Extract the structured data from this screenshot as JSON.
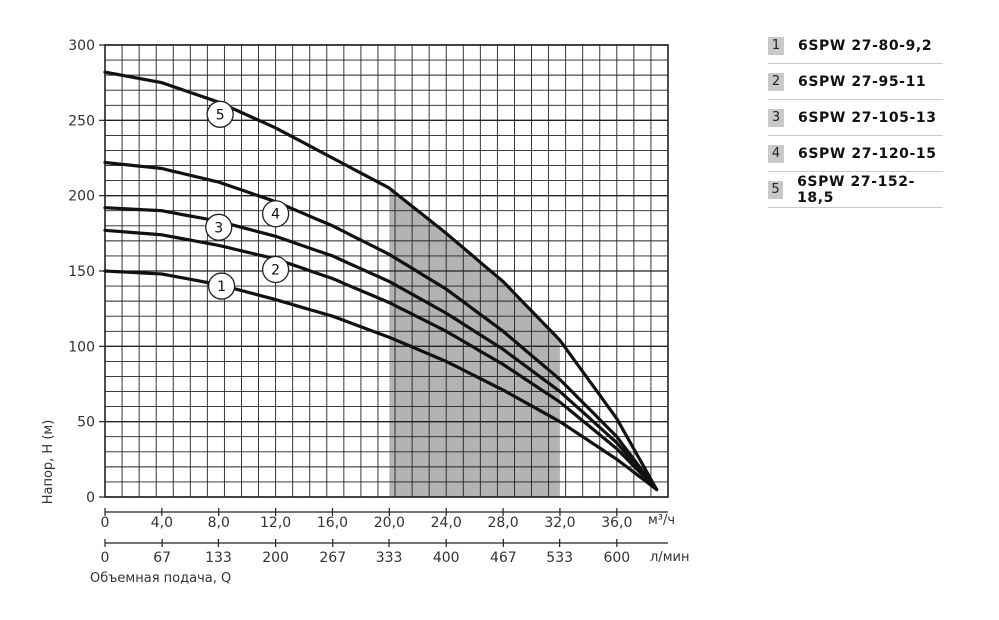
{
  "chart_data": {
    "type": "line",
    "ylabel": "Напор, H (м)",
    "xlabel": "Объемная подача, Q",
    "ylim": [
      0,
      300
    ],
    "xlim": [
      0,
      40
    ],
    "y_ticks": [
      "0",
      "50",
      "100",
      "150",
      "200",
      "250",
      "300"
    ],
    "x_ticks": [
      "0",
      "4,0",
      "8,0",
      "12,0",
      "16,0",
      "20,0",
      "24,0",
      "28,0",
      "32,0",
      "36,0"
    ],
    "x_unit": "м³/ч",
    "x2_ticks": [
      "0",
      "67",
      "133",
      "200",
      "267",
      "333",
      "400",
      "467",
      "533",
      "600"
    ],
    "x2_unit": "л/мин",
    "grid": true,
    "working_range": [
      20,
      32
    ],
    "series": [
      {
        "name": "6SPW 27-80-9,2",
        "marker": "1",
        "x": [
          0,
          4,
          8,
          12,
          16,
          20,
          24,
          28,
          32,
          36,
          38.8
        ],
        "y": [
          150,
          148,
          141,
          131,
          120,
          106,
          90,
          71,
          50,
          25,
          5
        ]
      },
      {
        "name": "6SPW 27-95-11",
        "marker": "2",
        "x": [
          0,
          4,
          8,
          12,
          16,
          20,
          24,
          28,
          32,
          36,
          38.8
        ],
        "y": [
          177,
          174,
          167,
          158,
          145,
          129,
          110,
          88,
          63,
          32,
          5
        ]
      },
      {
        "name": "6SPW 27-105-13",
        "marker": "3",
        "x": [
          0,
          4,
          8,
          12,
          16,
          20,
          24,
          28,
          32,
          36,
          38.8
        ],
        "y": [
          192,
          190,
          183,
          173,
          160,
          143,
          122,
          98,
          70,
          36,
          5
        ]
      },
      {
        "name": "6SPW 27-120-15",
        "marker": "4",
        "x": [
          0,
          4,
          8,
          12,
          16,
          20,
          24,
          28,
          32,
          36,
          38.8
        ],
        "y": [
          222,
          218,
          209,
          196,
          180,
          161,
          138,
          110,
          78,
          40,
          5
        ]
      },
      {
        "name": "6SPW 27-152-18,5",
        "marker": "5",
        "x": [
          0,
          4,
          8,
          12,
          16,
          20,
          24,
          28,
          32,
          36,
          38.8
        ],
        "y": [
          282,
          275,
          262,
          245,
          225,
          205,
          175,
          143,
          104,
          52,
          5
        ]
      }
    ],
    "marker_positions": [
      {
        "label": "1",
        "x": 8.2,
        "y": 140
      },
      {
        "label": "2",
        "x": 12.0,
        "y": 151
      },
      {
        "label": "3",
        "x": 8.0,
        "y": 179
      },
      {
        "label": "4",
        "x": 12.0,
        "y": 188
      },
      {
        "label": "5",
        "x": 8.1,
        "y": 254
      }
    ]
  },
  "legend": [
    {
      "num": "1",
      "label": "6SPW 27-80-9,2"
    },
    {
      "num": "2",
      "label": "6SPW 27-95-11"
    },
    {
      "num": "3",
      "label": "6SPW 27-105-13"
    },
    {
      "num": "4",
      "label": "6SPW 27-120-15"
    },
    {
      "num": "5",
      "label": "6SPW 27-152-18,5"
    }
  ],
  "colors": {
    "curve": "#111111",
    "grid": "#222222",
    "working_range": "#b3b3b3",
    "legend_badge": "#c9c9c9"
  }
}
